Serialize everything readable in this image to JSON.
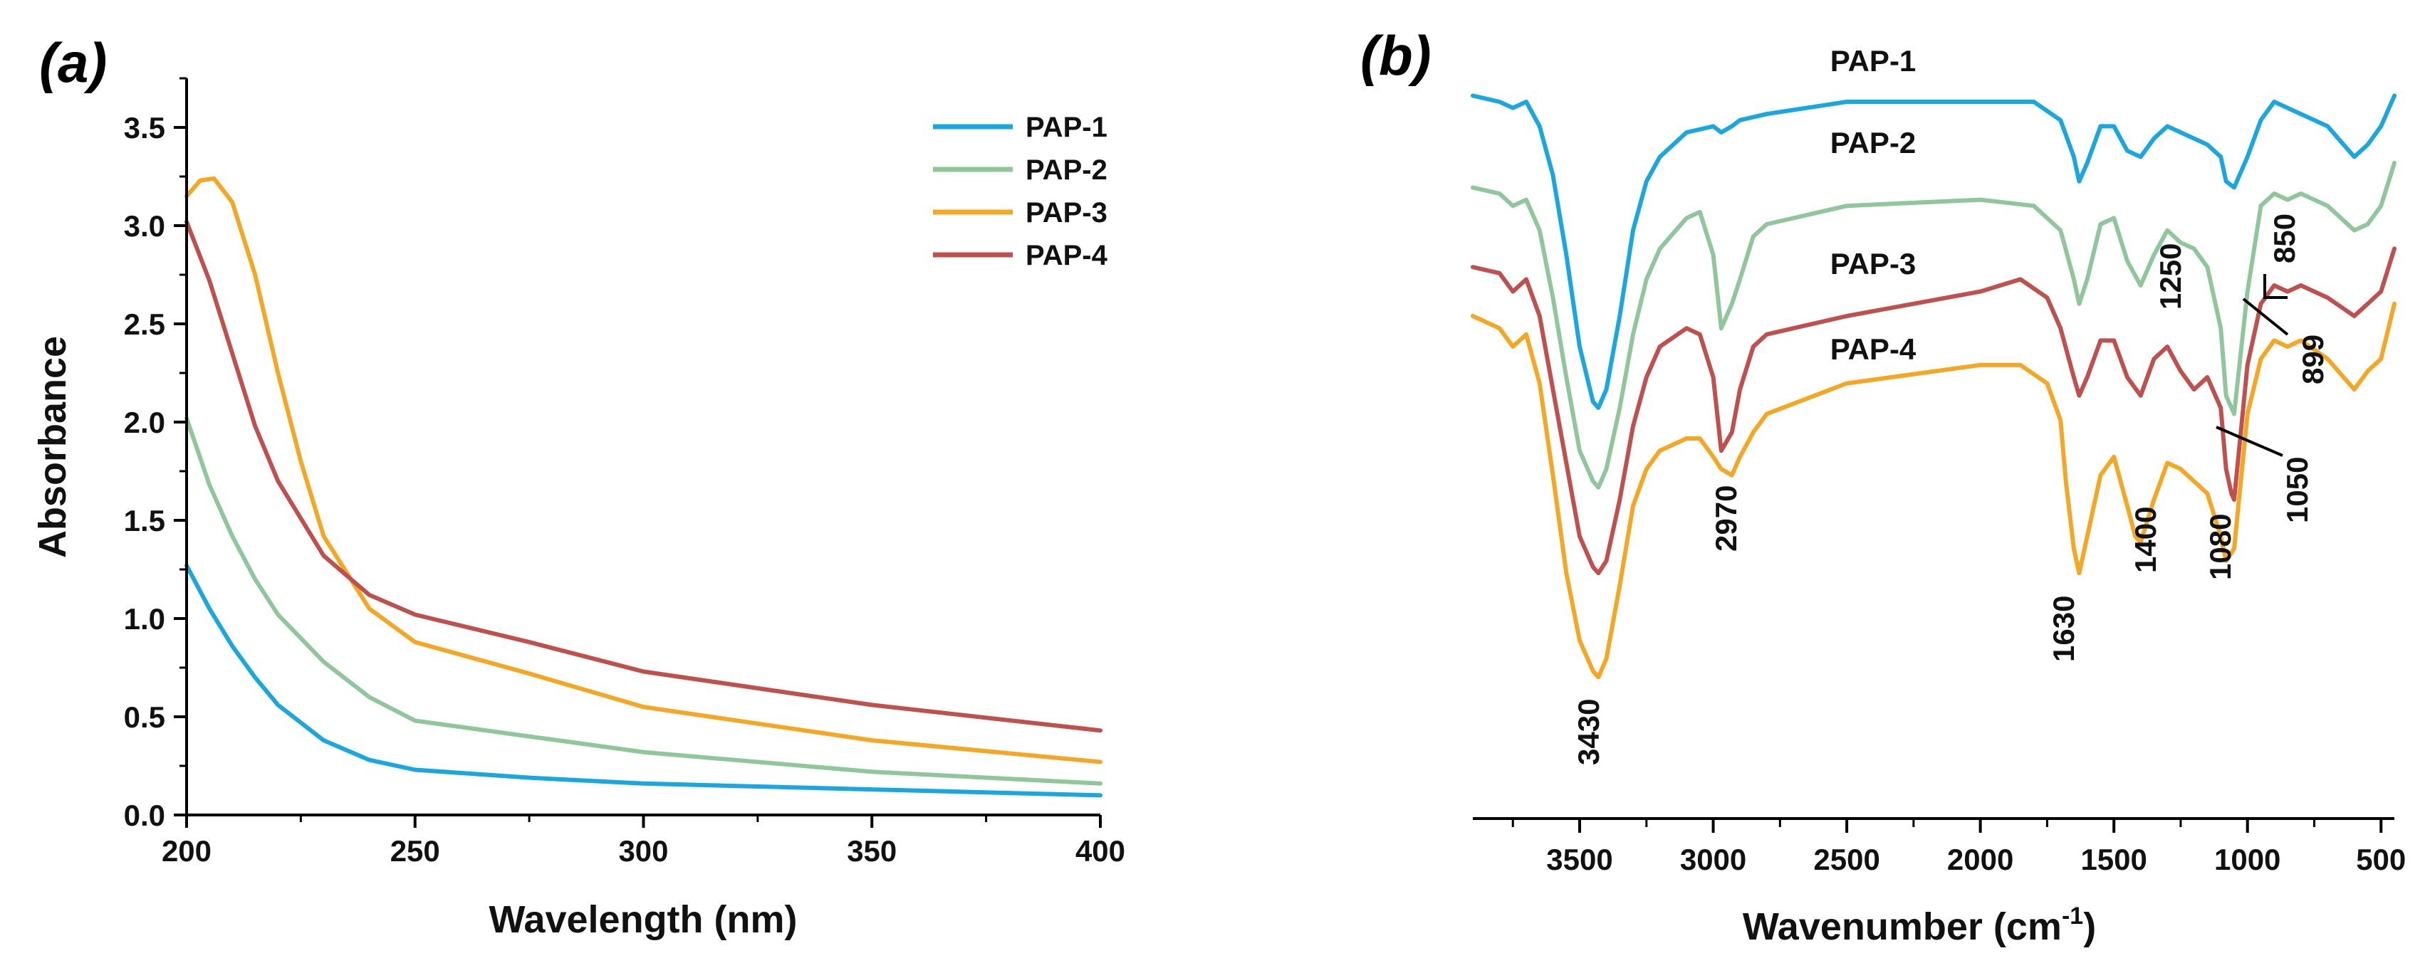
{
  "chart_data": [
    {
      "panel": "(a)",
      "type": "line",
      "xlabel": "Wavelength (nm)",
      "ylabel": "Absorbance",
      "xlim": [
        200,
        400
      ],
      "ylim": [
        0,
        3.75
      ],
      "xticks": [
        200,
        250,
        300,
        350,
        400
      ],
      "yticks": [
        0.0,
        0.5,
        1.0,
        1.5,
        2.0,
        2.5,
        3.0,
        3.5
      ],
      "ytick_labels": [
        "0.0",
        "0.5",
        "1.0",
        "1.5",
        "2.0",
        "2.5",
        "3.0",
        "3.5"
      ],
      "legend_position": "top-right",
      "series": [
        {
          "name": "PAP-1",
          "color": "#1aa7e0",
          "x": [
            200,
            205,
            210,
            215,
            220,
            230,
            240,
            250,
            275,
            300,
            350,
            400
          ],
          "y": [
            1.27,
            1.05,
            0.86,
            0.7,
            0.56,
            0.38,
            0.28,
            0.23,
            0.19,
            0.16,
            0.13,
            0.1
          ]
        },
        {
          "name": "PAP-2",
          "color": "#8fc79b",
          "x": [
            200,
            205,
            210,
            215,
            220,
            230,
            240,
            250,
            275,
            300,
            350,
            400
          ],
          "y": [
            2.02,
            1.68,
            1.42,
            1.2,
            1.02,
            0.78,
            0.6,
            0.48,
            0.4,
            0.32,
            0.22,
            0.16
          ]
        },
        {
          "name": "PAP-3",
          "color": "#f5a623",
          "x": [
            200,
            203,
            206,
            210,
            215,
            220,
            225,
            230,
            240,
            250,
            275,
            300,
            350,
            400
          ],
          "y": [
            3.15,
            3.23,
            3.24,
            3.12,
            2.75,
            2.25,
            1.8,
            1.42,
            1.05,
            0.88,
            0.72,
            0.55,
            0.38,
            0.27
          ]
        },
        {
          "name": "PAP-4",
          "color": "#c0504d",
          "x": [
            200,
            205,
            210,
            215,
            220,
            230,
            240,
            250,
            275,
            300,
            350,
            400
          ],
          "y": [
            3.02,
            2.72,
            2.35,
            1.98,
            1.7,
            1.32,
            1.12,
            1.02,
            0.88,
            0.73,
            0.56,
            0.43
          ]
        }
      ]
    },
    {
      "panel": "(b)",
      "type": "line",
      "xlabel_main": "Wavenumber (cm",
      "xlabel_sup": "-1",
      "xlabel_tail": ")",
      "xlim": [
        3900,
        450
      ],
      "xticks": [
        3500,
        3000,
        2500,
        2000,
        1500,
        1000,
        500
      ],
      "note": "FTIR spectra, arbitrary transmittance units (offset traces, y in relative units 0-100)",
      "series": [
        {
          "name": "PAP-1",
          "color": "#1aa7e0",
          "x": [
            3900,
            3800,
            3750,
            3700,
            3650,
            3600,
            3550,
            3500,
            3450,
            3430,
            3400,
            3350,
            3300,
            3250,
            3200,
            3100,
            3000,
            2970,
            2930,
            2900,
            2800,
            2500,
            2000,
            1800,
            1700,
            1650,
            1630,
            1600,
            1550,
            1500,
            1450,
            1400,
            1350,
            1300,
            1250,
            1200,
            1150,
            1100,
            1080,
            1050,
            1000,
            950,
            900,
            850,
            800,
            700,
            600,
            550,
            500,
            450
          ],
          "y": [
            96,
            95,
            94,
            95,
            91,
            83,
            70,
            55,
            46,
            45,
            48,
            60,
            74,
            82,
            86,
            90,
            91,
            90,
            91,
            92,
            93,
            95,
            95,
            95,
            92,
            86,
            82,
            85,
            91,
            91,
            87,
            86,
            89,
            91,
            90,
            89,
            88,
            86,
            82,
            81,
            86,
            92,
            95,
            94,
            93,
            91,
            86,
            88,
            91,
            96
          ]
        },
        {
          "name": "PAP-2",
          "color": "#8fc79b",
          "x": [
            3900,
            3800,
            3750,
            3700,
            3650,
            3600,
            3550,
            3500,
            3450,
            3430,
            3400,
            3350,
            3300,
            3250,
            3200,
            3100,
            3050,
            3000,
            2970,
            2930,
            2900,
            2850,
            2800,
            2500,
            2000,
            1800,
            1700,
            1650,
            1630,
            1600,
            1550,
            1500,
            1450,
            1400,
            1350,
            1300,
            1250,
            1200,
            1150,
            1100,
            1080,
            1050,
            1000,
            950,
            900,
            850,
            800,
            700,
            600,
            550,
            500,
            450
          ],
          "y": [
            81,
            80,
            78,
            79,
            74,
            63,
            50,
            38,
            33,
            32,
            35,
            45,
            57,
            66,
            71,
            76,
            77,
            70,
            58,
            62,
            66,
            73,
            75,
            78,
            79,
            78,
            74,
            66,
            62,
            66,
            75,
            76,
            69,
            65,
            70,
            74,
            72,
            71,
            68,
            58,
            47,
            44,
            64,
            78,
            80,
            79,
            80,
            78,
            74,
            75,
            78,
            85
          ]
        },
        {
          "name": "PAP-3",
          "color": "#c0504d",
          "x": [
            3900,
            3800,
            3750,
            3700,
            3650,
            3600,
            3550,
            3500,
            3450,
            3430,
            3400,
            3350,
            3300,
            3250,
            3200,
            3100,
            3050,
            3000,
            2970,
            2930,
            2900,
            2850,
            2800,
            2500,
            2000,
            1850,
            1750,
            1700,
            1650,
            1630,
            1600,
            1550,
            1500,
            1450,
            1400,
            1350,
            1300,
            1250,
            1200,
            1150,
            1100,
            1080,
            1060,
            1050,
            1000,
            950,
            900,
            850,
            800,
            700,
            600,
            550,
            500,
            450
          ],
          "y": [
            68,
            67,
            64,
            66,
            60,
            48,
            36,
            24,
            19,
            18,
            20,
            30,
            42,
            50,
            55,
            58,
            57,
            50,
            38,
            41,
            48,
            55,
            57,
            60,
            64,
            66,
            63,
            58,
            50,
            47,
            50,
            56,
            56,
            50,
            47,
            53,
            55,
            51,
            48,
            50,
            45,
            35,
            31,
            30,
            52,
            62,
            65,
            64,
            65,
            63,
            60,
            62,
            64,
            71
          ]
        },
        {
          "name": "PAP-4",
          "color": "#f5a623",
          "x": [
            3900,
            3800,
            3750,
            3700,
            3650,
            3600,
            3550,
            3500,
            3450,
            3430,
            3400,
            3350,
            3300,
            3250,
            3200,
            3100,
            3050,
            3000,
            2970,
            2930,
            2900,
            2850,
            2800,
            2500,
            2000,
            1850,
            1750,
            1700,
            1680,
            1650,
            1630,
            1600,
            1550,
            1500,
            1450,
            1420,
            1400,
            1350,
            1300,
            1250,
            1200,
            1150,
            1100,
            1080,
            1050,
            1000,
            950,
            900,
            850,
            800,
            700,
            600,
            550,
            500,
            450
          ],
          "y": [
            60,
            58,
            55,
            57,
            49,
            34,
            18,
            7,
            2,
            1,
            4,
            16,
            29,
            35,
            38,
            40,
            40,
            37,
            35,
            34,
            37,
            41,
            44,
            49,
            52,
            52,
            49,
            43,
            33,
            22,
            18,
            24,
            34,
            37,
            29,
            24,
            23,
            30,
            36,
            35,
            33,
            31,
            24,
            20,
            22,
            44,
            53,
            56,
            55,
            56,
            53,
            48,
            51,
            53,
            62
          ]
        }
      ],
      "trace_labels": [
        "PAP-1",
        "PAP-2",
        "PAP-3",
        "PAP-4"
      ],
      "peak_labels": [
        "3430",
        "2970",
        "1630",
        "1400",
        "1250",
        "1080",
        "1050",
        "899",
        "850"
      ]
    }
  ]
}
